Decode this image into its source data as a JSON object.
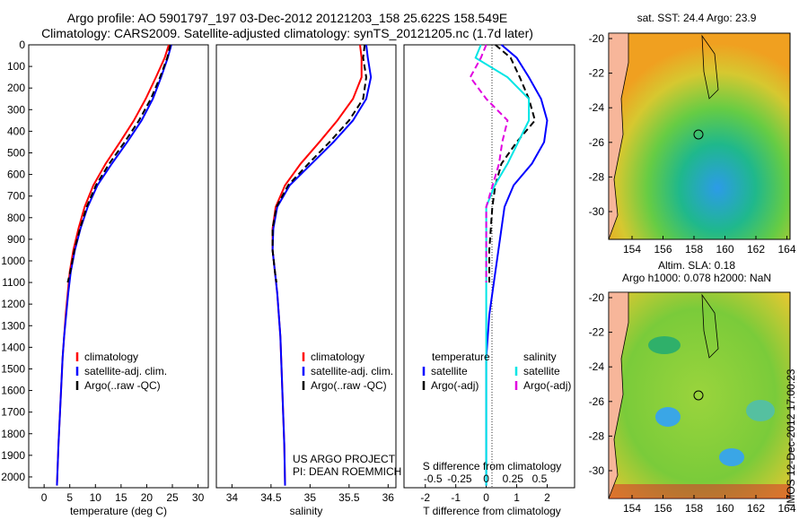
{
  "header": {
    "line1": "Argo profile: AO 5901797_197 03-Dec-2012 20121203_158 25.622S 158.549E",
    "line2": "Climatology: CARS2009. Satellite-adjusted climatology: synTS_20121205.nc (1.7d later)"
  },
  "depth_ticks": [
    "0",
    "100",
    "200",
    "300",
    "400",
    "500",
    "600",
    "700",
    "800",
    "900",
    "1000",
    "1100",
    "1200",
    "1300",
    "1400",
    "1500",
    "1600",
    "1700",
    "1800",
    "1900",
    "2000"
  ],
  "panel_temp": {
    "xlabel": "temperature (deg C)",
    "xticks": [
      "0",
      "5",
      "10",
      "15",
      "20",
      "25",
      "30"
    ],
    "legend": [
      "climatology",
      "satellite-adj. clim.",
      "Argo(..raw -QC)"
    ]
  },
  "panel_sal": {
    "xlabel": "salinity",
    "xticks": [
      "34",
      "34.5",
      "35",
      "35.5",
      "36"
    ],
    "legend": [
      "climatology",
      "satellite-adj. clim.",
      "Argo(..raw -QC)"
    ],
    "note1": "US ARGO PROJECT",
    "note2": "PI: DEAN ROEMMICH"
  },
  "panel_diff": {
    "t_header": "temperature",
    "s_header": "salinity",
    "t_legend": [
      "satellite",
      "Argo(-adj)"
    ],
    "s_legend": [
      "satellite",
      "Argo(-adj)"
    ],
    "s_label": "S difference from climatology",
    "s_ticks": [
      "-0.5",
      "-0.25",
      "0",
      "0.25",
      "0.5"
    ],
    "t_label": "T difference from climatology",
    "t_ticks": [
      "-2",
      "-1",
      "0",
      "1",
      "2"
    ]
  },
  "maps": {
    "sst_title": "sat. SST: 24.4  Argo: 23.9",
    "sla_title1": "Altim. SLA: 0.18",
    "sla_title2": "Argo h1000: 0.078 h2000: NaN",
    "lon_ticks": [
      "154",
      "156",
      "158",
      "160",
      "162",
      "164"
    ],
    "lat_ticks": [
      "-20",
      "-22",
      "-24",
      "-26",
      "-28",
      "-30"
    ]
  },
  "stamp": "IMOS 12-Dec-2012 17:00:23",
  "colors": {
    "climatology": "#ff0000",
    "satellite": "#0000ff",
    "argo": "#000000",
    "sal_satellite": "#00e5e5",
    "sal_argo": "#e000e0"
  },
  "chart_data": [
    {
      "type": "line",
      "xlabel": "temperature (deg C)",
      "ylabel": "",
      "xlim": [
        -3,
        32
      ],
      "ylim": [
        2050,
        0
      ],
      "series": [
        {
          "name": "climatology",
          "x": [
            24.3,
            23.5,
            21.8,
            19.8,
            17.5,
            14.8,
            12.0,
            9.6,
            7.9,
            6.7,
            5.7,
            5.0,
            4.6,
            4.2,
            3.9,
            3.6,
            3.4,
            3.2,
            3.0,
            2.8,
            2.5
          ],
          "y": [
            0,
            60,
            150,
            250,
            350,
            450,
            550,
            650,
            750,
            850,
            950,
            1050,
            1150,
            1250,
            1350,
            1450,
            1550,
            1650,
            1750,
            1850,
            2040
          ]
        },
        {
          "name": "satellite-adj. clim.",
          "x": [
            24.8,
            24.1,
            22.8,
            21.2,
            19.0,
            16.2,
            13.2,
            10.4,
            8.5,
            7.1,
            6.0,
            5.2,
            4.7,
            4.3,
            3.9,
            3.6,
            3.4,
            3.2,
            3.0,
            2.8,
            2.5
          ],
          "y": [
            0,
            60,
            150,
            250,
            350,
            450,
            550,
            650,
            750,
            850,
            950,
            1050,
            1150,
            1250,
            1350,
            1450,
            1550,
            1650,
            1750,
            1850,
            2040
          ]
        },
        {
          "name": "Argo(..raw -QC)",
          "x": [
            24.6,
            24.0,
            22.6,
            20.8,
            18.5,
            15.7,
            12.7,
            10.1,
            8.3,
            7.0,
            5.9,
            5.1,
            4.6
          ],
          "y": [
            0,
            60,
            150,
            250,
            350,
            450,
            550,
            650,
            750,
            850,
            950,
            1050,
            1100
          ]
        }
      ]
    },
    {
      "type": "line",
      "xlabel": "salinity",
      "ylabel": "",
      "xlim": [
        33.8,
        36.1
      ],
      "ylim": [
        2050,
        0
      ],
      "series": [
        {
          "name": "climatology",
          "x": [
            35.64,
            35.66,
            35.66,
            35.55,
            35.35,
            35.12,
            34.88,
            34.68,
            34.56,
            34.52,
            34.52,
            34.55,
            34.58,
            34.6,
            34.62,
            34.63,
            34.64,
            34.65,
            34.66,
            34.67,
            34.68
          ],
          "y": [
            0,
            60,
            150,
            250,
            350,
            450,
            550,
            650,
            750,
            850,
            950,
            1050,
            1150,
            1250,
            1350,
            1450,
            1550,
            1650,
            1750,
            1850,
            2040
          ]
        },
        {
          "name": "satellite-adj. clim.",
          "x": [
            35.72,
            35.74,
            35.78,
            35.72,
            35.55,
            35.3,
            35.02,
            34.74,
            34.58,
            34.53,
            34.52,
            34.55,
            34.58,
            34.6,
            34.62,
            34.63,
            34.64,
            34.65,
            34.66,
            34.67,
            34.68
          ],
          "y": [
            0,
            60,
            150,
            250,
            350,
            450,
            550,
            650,
            750,
            850,
            950,
            1050,
            1150,
            1250,
            1350,
            1450,
            1550,
            1650,
            1750,
            1850,
            2040
          ]
        },
        {
          "name": "Argo(..raw -QC)",
          "x": [
            35.7,
            35.68,
            35.72,
            35.68,
            35.5,
            35.25,
            34.98,
            34.72,
            34.57,
            34.52,
            34.52,
            34.55,
            34.57
          ],
          "y": [
            0,
            60,
            150,
            250,
            350,
            450,
            550,
            650,
            750,
            850,
            950,
            1050,
            1100
          ]
        }
      ]
    },
    {
      "type": "line",
      "xlabel": "T difference from climatology",
      "ylabel": "",
      "xlim": [
        -2.7,
        2.9
      ],
      "ylim": [
        2050,
        0
      ],
      "series": [
        {
          "name": "temperature satellite",
          "x": [
            0.5,
            1.0,
            1.4,
            1.8,
            2.0,
            1.9,
            1.5,
            0.9,
            0.6,
            0.5,
            0.4,
            0.3,
            0.2,
            0.1,
            0.05,
            0.0,
            0.0,
            0.0,
            0.0,
            0.0,
            0.0
          ],
          "y": [
            0,
            60,
            150,
            250,
            350,
            450,
            550,
            650,
            750,
            850,
            950,
            1050,
            1150,
            1250,
            1350,
            1450,
            1550,
            1650,
            1750,
            1850,
            2040
          ]
        },
        {
          "name": "temperature Argo(-adj)",
          "x": [
            0.3,
            0.8,
            1.1,
            1.4,
            1.6,
            1.0,
            0.5,
            0.3,
            0.2,
            0.15,
            0.1,
            0.1,
            0.1
          ],
          "y": [
            0,
            60,
            150,
            250,
            350,
            450,
            550,
            650,
            750,
            850,
            950,
            1050,
            1100
          ]
        },
        {
          "name": "salinity satellite",
          "x": [
            -0.05,
            -0.1,
            0.2,
            0.4,
            0.4,
            0.3,
            0.2,
            0.08,
            0.0,
            0.0,
            0.0,
            0.0,
            0.0,
            0.0,
            0.0,
            0.0,
            0.0,
            0.0,
            0.0,
            0.0,
            0.0
          ],
          "y": [
            0,
            60,
            150,
            250,
            350,
            450,
            550,
            650,
            750,
            850,
            950,
            1050,
            1150,
            1250,
            1350,
            1450,
            1550,
            1650,
            1750,
            1850,
            2040
          ]
        },
        {
          "name": "salinity Argo(-adj)",
          "x": [
            0.0,
            -0.05,
            -0.15,
            0.0,
            0.2,
            0.15,
            0.12,
            0.06,
            0.0,
            0.0,
            0.0,
            0.0,
            0.0
          ],
          "y": [
            0,
            60,
            150,
            250,
            350,
            450,
            550,
            650,
            750,
            850,
            950,
            1050,
            1100
          ]
        }
      ]
    }
  ]
}
